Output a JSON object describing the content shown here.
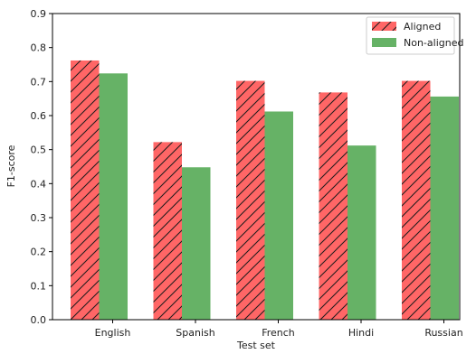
{
  "chart_data": {
    "type": "bar",
    "xlabel": "Test set",
    "ylabel": "F1-score",
    "ylim": [
      0,
      0.9
    ],
    "yticks": [
      "0.0",
      "0.1",
      "0.2",
      "0.3",
      "0.4",
      "0.5",
      "0.6",
      "0.7",
      "0.8",
      "0.9"
    ],
    "categories": [
      "English",
      "Spanish",
      "French",
      "Hindi",
      "Russian"
    ],
    "series": [
      {
        "name": "Aligned",
        "values": [
          0.762,
          0.522,
          0.702,
          0.668,
          0.702
        ],
        "color": "#ff6666",
        "hatch": "diagonal"
      },
      {
        "name": "Non-aligned",
        "values": [
          0.724,
          0.448,
          0.612,
          0.512,
          0.656
        ],
        "color": "#66b266",
        "hatch": "none"
      }
    ],
    "legend_position": "top-right",
    "grid": false
  }
}
